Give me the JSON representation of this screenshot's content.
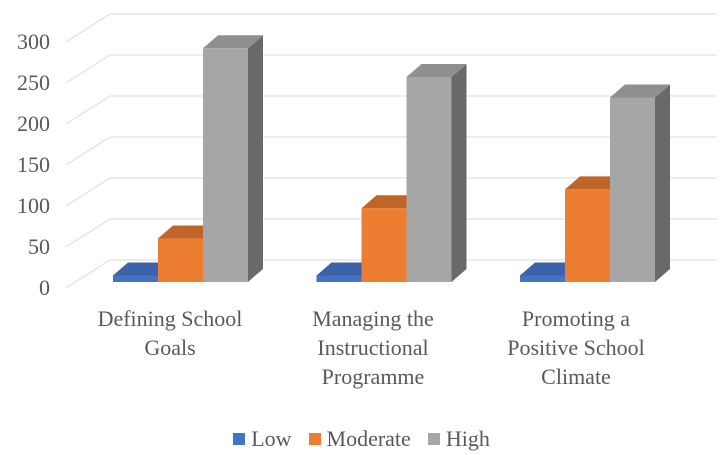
{
  "chart_data": {
    "type": "bar",
    "variant": "3d-clustered-column",
    "categories": [
      "Defining School Goals",
      "Managing the Instructional Programme",
      "Promoting a Positive School Climate"
    ],
    "categories_display": [
      "Defining School\nGoals",
      "Managing the\nInstructional\nProgramme",
      "Promoting a\nPositive School\nClimate"
    ],
    "series": [
      {
        "name": "Low",
        "color": "#4472C4",
        "color_top": "#3C62A7",
        "color_side": "#2E4E87",
        "values": [
          8,
          8,
          8
        ]
      },
      {
        "name": "Moderate",
        "color": "#ED7D31",
        "color_top": "#BF6529",
        "color_side": "#9E531E",
        "values": [
          53,
          90,
          113
        ]
      },
      {
        "name": "High",
        "color": "#A6A6A6",
        "color_top": "#8F8F8F",
        "color_side": "#696969",
        "values": [
          285,
          250,
          225
        ]
      }
    ],
    "yticks": [
      300,
      250,
      200,
      150,
      100,
      50,
      0
    ],
    "ylim": [
      0,
      300
    ],
    "grid": "horizontal",
    "gridline_color": "#D9D9D9",
    "text_color": "#595959",
    "background": "#FFFFFF",
    "legend_position": "bottom"
  }
}
